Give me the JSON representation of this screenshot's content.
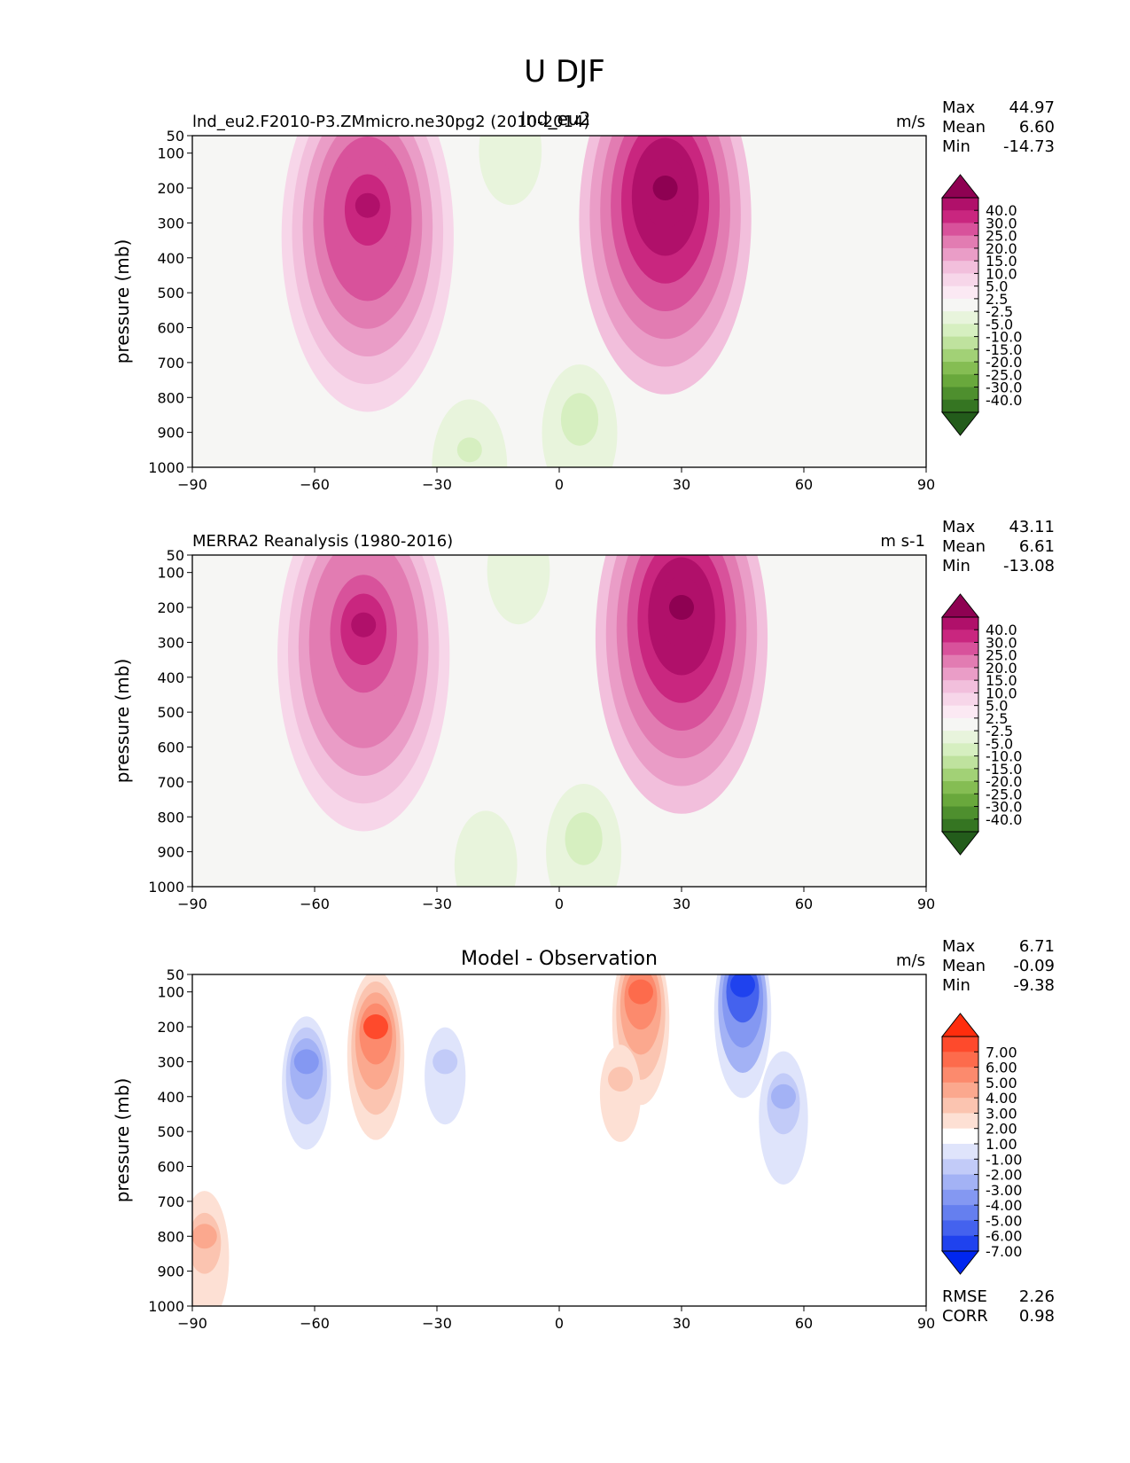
{
  "figure": {
    "title": "U DJF",
    "overlap_label": "lnd_eu2"
  },
  "chart_data": [
    {
      "type": "heatmap",
      "panel": "test",
      "title": "lnd_eu2.F2010-P3.ZMmicro.ne30pg2 (2010-2014)",
      "units": "m/s",
      "ylabel": "pressure (mb)",
      "xlabel": "",
      "xlim": [
        -90,
        90
      ],
      "ylim": [
        1000,
        50
      ],
      "x_ticks": [
        "−90",
        "−60",
        "−30",
        "0",
        "30",
        "60",
        "90"
      ],
      "y_ticks": [
        "50",
        "100",
        "200",
        "300",
        "400",
        "500",
        "600",
        "700",
        "800",
        "900",
        "1000"
      ],
      "stats": [
        {
          "label": "Max",
          "value": "44.97"
        },
        {
          "label": "Mean",
          "value": "6.60"
        },
        {
          "label": "Min",
          "value": "-14.73"
        }
      ],
      "colorbar_levels": [
        "40.0",
        "30.0",
        "25.0",
        "20.0",
        "15.0",
        "10.0",
        "5.0",
        "2.5",
        "-2.5",
        "-5.0",
        "-10.0",
        "-15.0",
        "-20.0",
        "-25.0",
        "-30.0",
        "-40.0"
      ],
      "colorbar_colors": [
        "#8e0152",
        "#b0106a",
        "#c9267f",
        "#d8529b",
        "#e27cb2",
        "#ea9dc7",
        "#f2bfdc",
        "#f7d6e9",
        "#fbe9f3",
        "#f6f6f4",
        "#e8f4dc",
        "#d6efc0",
        "#bfe29e",
        "#a2d176",
        "#85bd53",
        "#69a83c",
        "#4e8f2e",
        "#357522",
        "#235c1b"
      ],
      "features": [
        {
          "lat": -47,
          "p": 250,
          "value": 33
        },
        {
          "lat": 26,
          "p": 200,
          "value": 40
        },
        {
          "lat": 5,
          "p": 850,
          "value": -6
        },
        {
          "lat": -22,
          "p": 950,
          "value": -5
        },
        {
          "lat": -12,
          "p": 55,
          "value": -4
        }
      ]
    },
    {
      "type": "heatmap",
      "panel": "reference",
      "title": "MERRA2 Reanalysis (1980-2016)",
      "units": "m s-1",
      "ylabel": "pressure (mb)",
      "xlabel": "",
      "xlim": [
        -90,
        90
      ],
      "ylim": [
        1000,
        50
      ],
      "x_ticks": [
        "−90",
        "−60",
        "−30",
        "0",
        "30",
        "60",
        "90"
      ],
      "y_ticks": [
        "50",
        "100",
        "200",
        "300",
        "400",
        "500",
        "600",
        "700",
        "800",
        "900",
        "1000"
      ],
      "stats": [
        {
          "label": "Max",
          "value": "43.11"
        },
        {
          "label": "Mean",
          "value": "6.61"
        },
        {
          "label": "Min",
          "value": "-13.08"
        }
      ],
      "colorbar_levels": [
        "40.0",
        "30.0",
        "25.0",
        "20.0",
        "15.0",
        "10.0",
        "5.0",
        "2.5",
        "-2.5",
        "-5.0",
        "-10.0",
        "-15.0",
        "-20.0",
        "-25.0",
        "-30.0",
        "-40.0"
      ],
      "colorbar_colors": [
        "#8e0152",
        "#b0106a",
        "#c9267f",
        "#d8529b",
        "#e27cb2",
        "#ea9dc7",
        "#f2bfdc",
        "#f7d6e9",
        "#fbe9f3",
        "#f6f6f4",
        "#e8f4dc",
        "#d6efc0",
        "#bfe29e",
        "#a2d176",
        "#85bd53",
        "#69a83c",
        "#4e8f2e",
        "#357522",
        "#235c1b"
      ],
      "features": [
        {
          "lat": -48,
          "p": 250,
          "value": 31
        },
        {
          "lat": 30,
          "p": 200,
          "value": 41
        },
        {
          "lat": 6,
          "p": 850,
          "value": -6
        },
        {
          "lat": -18,
          "p": 900,
          "value": -4
        },
        {
          "lat": -10,
          "p": 55,
          "value": -4
        }
      ]
    },
    {
      "type": "heatmap",
      "panel": "difference",
      "title": "Model - Observation",
      "units": "m/s",
      "ylabel": "pressure (mb)",
      "xlabel": "",
      "xlim": [
        -90,
        90
      ],
      "ylim": [
        1000,
        50
      ],
      "x_ticks": [
        "−90",
        "−60",
        "−30",
        "0",
        "30",
        "60",
        "90"
      ],
      "y_ticks": [
        "50",
        "100",
        "200",
        "300",
        "400",
        "500",
        "600",
        "700",
        "800",
        "900",
        "1000"
      ],
      "stats": [
        {
          "label": "Max",
          "value": "6.71"
        },
        {
          "label": "Mean",
          "value": "-0.09"
        },
        {
          "label": "Min",
          "value": "-9.38"
        }
      ],
      "extra_stats": [
        {
          "label": "RMSE",
          "value": "2.26"
        },
        {
          "label": "CORR",
          "value": "0.98"
        }
      ],
      "colorbar_levels": [
        "7.00",
        "6.00",
        "5.00",
        "4.00",
        "3.00",
        "2.00",
        "1.00",
        "-1.00",
        "-2.00",
        "-3.00",
        "-4.00",
        "-5.00",
        "-6.00",
        "-7.00"
      ],
      "colorbar_colors": [
        "#ff2d0d",
        "#fe4a2c",
        "#fd6b4c",
        "#fc8a6d",
        "#fba88e",
        "#fbc4b0",
        "#fde0d4",
        "#ffffff",
        "#dfe4fb",
        "#c2cbf8",
        "#a3b2f5",
        "#8498f2",
        "#657fef",
        "#4462ee",
        "#1f42ee",
        "#0026ef"
      ],
      "features": [
        {
          "lat": -45,
          "p": 200,
          "value": 6
        },
        {
          "lat": -62,
          "p": 300,
          "value": -4
        },
        {
          "lat": 20,
          "p": 100,
          "value": 5
        },
        {
          "lat": 45,
          "p": 80,
          "value": -8
        },
        {
          "lat": 55,
          "p": 400,
          "value": -3
        },
        {
          "lat": -87,
          "p": 800,
          "value": 3
        },
        {
          "lat": -28,
          "p": 300,
          "value": -2
        },
        {
          "lat": 15,
          "p": 350,
          "value": 2
        }
      ]
    }
  ]
}
